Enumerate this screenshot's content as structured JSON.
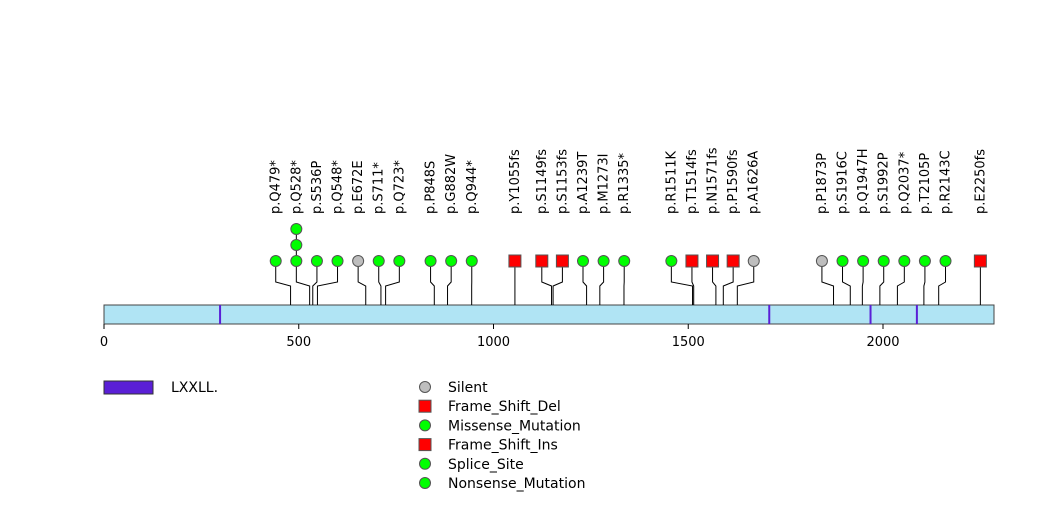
{
  "chart_data": {
    "type": "lollipop",
    "protein_length": 2285,
    "xlim": [
      0,
      2285
    ],
    "axis_ticks": [
      0,
      500,
      1000,
      1500,
      2000
    ],
    "axis_tick_labels": [
      "0",
      "500",
      "1000",
      "1500",
      "2000"
    ],
    "domain_label": "LXXLL",
    "domain_label_suffix": ".",
    "domains_positions": [
      298,
      1708,
      1968,
      2087
    ],
    "mutations": [
      {
        "label": "p.Q479*",
        "pos": 479,
        "type": "Nonsense_Mutation",
        "count": 1
      },
      {
        "label": "p.Q528*",
        "pos": 528,
        "type": "Nonsense_Mutation",
        "count": 3
      },
      {
        "label": "p.S536P",
        "pos": 536,
        "type": "Missense_Mutation",
        "count": 1
      },
      {
        "label": "p.Q548*",
        "pos": 548,
        "type": "Nonsense_Mutation",
        "count": 1
      },
      {
        "label": "p.E672E",
        "pos": 672,
        "type": "Silent",
        "count": 1
      },
      {
        "label": "p.S711*",
        "pos": 711,
        "type": "Nonsense_Mutation",
        "count": 1
      },
      {
        "label": "p.Q723*",
        "pos": 723,
        "type": "Nonsense_Mutation",
        "count": 1
      },
      {
        "label": "p.P848S",
        "pos": 848,
        "type": "Missense_Mutation",
        "count": 1
      },
      {
        "label": "p.G882W",
        "pos": 882,
        "type": "Missense_Mutation",
        "count": 1
      },
      {
        "label": "p.Q944*",
        "pos": 944,
        "type": "Nonsense_Mutation",
        "count": 1
      },
      {
        "label": "p.Y1055fs",
        "pos": 1055,
        "type": "Frame_Shift_Del",
        "count": 1
      },
      {
        "label": "p.S1149fs",
        "pos": 1149,
        "type": "Frame_Shift_Del",
        "count": 1
      },
      {
        "label": "p.S1153fs",
        "pos": 1153,
        "type": "Frame_Shift_Del",
        "count": 1
      },
      {
        "label": "p.A1239T",
        "pos": 1239,
        "type": "Missense_Mutation",
        "count": 1
      },
      {
        "label": "p.M1273I",
        "pos": 1273,
        "type": "Missense_Mutation",
        "count": 1
      },
      {
        "label": "p.R1335*",
        "pos": 1335,
        "type": "Nonsense_Mutation",
        "count": 1
      },
      {
        "label": "p.R1511K",
        "pos": 1511,
        "type": "Missense_Mutation",
        "count": 1
      },
      {
        "label": "p.T1514fs",
        "pos": 1514,
        "type": "Frame_Shift_Del",
        "count": 1
      },
      {
        "label": "p.N1571fs",
        "pos": 1571,
        "type": "Frame_Shift_Del",
        "count": 1
      },
      {
        "label": "p.P1590fs",
        "pos": 1590,
        "type": "Frame_Shift_Ins",
        "count": 1
      },
      {
        "label": "p.A1626A",
        "pos": 1626,
        "type": "Silent",
        "count": 1
      },
      {
        "label": "p.P1873P",
        "pos": 1873,
        "type": "Silent",
        "count": 1
      },
      {
        "label": "p.S1916C",
        "pos": 1916,
        "type": "Missense_Mutation",
        "count": 1
      },
      {
        "label": "p.Q1947H",
        "pos": 1947,
        "type": "Missense_Mutation",
        "count": 1
      },
      {
        "label": "p.S1992P",
        "pos": 1992,
        "type": "Missense_Mutation",
        "count": 1
      },
      {
        "label": "p.Q2037*",
        "pos": 2037,
        "type": "Nonsense_Mutation",
        "count": 1
      },
      {
        "label": "p.T2105P",
        "pos": 2105,
        "type": "Missense_Mutation",
        "count": 1
      },
      {
        "label": "p.R2143C",
        "pos": 2143,
        "type": "Missense_Mutation",
        "count": 1
      },
      {
        "label": "p.E2250fs",
        "pos": 2250,
        "type": "Frame_Shift_Del",
        "count": 1
      }
    ],
    "legend": [
      {
        "label": "Silent",
        "shape": "circle",
        "color": "#bebebe"
      },
      {
        "label": "Frame_Shift_Del",
        "shape": "square",
        "color": "#ff0000"
      },
      {
        "label": "Missense_Mutation",
        "shape": "circle",
        "color": "#00ff00"
      },
      {
        "label": "Frame_Shift_Ins",
        "shape": "square",
        "color": "#ff0000"
      },
      {
        "label": "Splice_Site",
        "shape": "circle",
        "color": "#00ff00"
      },
      {
        "label": "Nonsense_Mutation",
        "shape": "circle",
        "color": "#00ff00"
      }
    ],
    "colors": {
      "protein_bar": "#b0e4f4",
      "domain": "#5a1fd6",
      "stem": "#000000"
    }
  }
}
